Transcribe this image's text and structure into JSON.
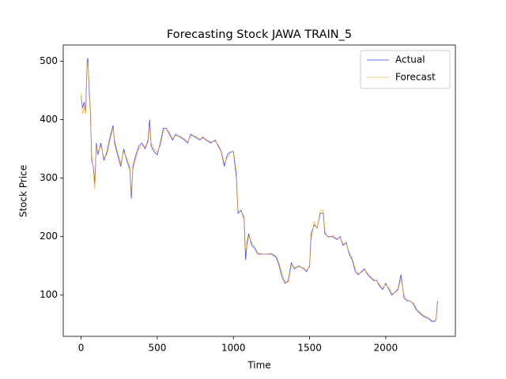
{
  "chart_data": {
    "type": "line",
    "title": "Forecasting Stock JAWA TRAIN_5",
    "x_label": "Time",
    "y_label": "Stock Price",
    "x": [
      0,
      10,
      20,
      30,
      40,
      45,
      55,
      60,
      70,
      80,
      90,
      100,
      110,
      130,
      150,
      170,
      190,
      210,
      220,
      240,
      260,
      280,
      300,
      320,
      330,
      340,
      360,
      380,
      400,
      420,
      440,
      450,
      460,
      480,
      500,
      520,
      540,
      560,
      580,
      600,
      620,
      650,
      680,
      700,
      720,
      750,
      780,
      800,
      820,
      850,
      880,
      900,
      920,
      940,
      960,
      980,
      1000,
      1020,
      1030,
      1050,
      1070,
      1080,
      1090,
      1100,
      1120,
      1140,
      1160,
      1200,
      1250,
      1280,
      1300,
      1320,
      1340,
      1360,
      1380,
      1400,
      1430,
      1460,
      1480,
      1500,
      1510,
      1530,
      1550,
      1570,
      1590,
      1600,
      1620,
      1650,
      1680,
      1700,
      1720,
      1740,
      1760,
      1780,
      1800,
      1820,
      1840,
      1860,
      1880,
      1900,
      1920,
      1940,
      1960,
      1980,
      2000,
      2020,
      2040,
      2060,
      2080,
      2100,
      2120,
      2140,
      2160,
      2180,
      2200,
      2220,
      2240,
      2260,
      2280,
      2300,
      2320,
      2330,
      2340
    ],
    "series": [
      {
        "name": "Actual",
        "color": "#0000ff",
        "values": [
          440,
          420,
          430,
          415,
          500,
          505,
          440,
          420,
          330,
          320,
          290,
          360,
          340,
          360,
          330,
          345,
          370,
          390,
          360,
          340,
          320,
          350,
          330,
          315,
          265,
          320,
          340,
          355,
          360,
          350,
          365,
          400,
          355,
          345,
          340,
          360,
          385,
          385,
          375,
          365,
          375,
          370,
          365,
          360,
          375,
          370,
          365,
          370,
          365,
          360,
          365,
          355,
          345,
          320,
          340,
          345,
          345,
          300,
          240,
          245,
          230,
          160,
          190,
          205,
          185,
          180,
          170,
          170,
          170,
          165,
          150,
          130,
          120,
          125,
          155,
          145,
          150,
          145,
          140,
          150,
          205,
          220,
          215,
          240,
          240,
          205,
          200,
          200,
          195,
          200,
          185,
          190,
          170,
          160,
          140,
          135,
          140,
          145,
          135,
          130,
          125,
          125,
          115,
          110,
          120,
          110,
          100,
          105,
          110,
          135,
          95,
          90,
          90,
          85,
          75,
          70,
          65,
          62,
          60,
          55,
          55,
          58,
          90
        ]
      },
      {
        "name": "Forecast",
        "color": "#ffa500",
        "values": [
          445,
          410,
          420,
          410,
          490,
          500,
          450,
          425,
          340,
          315,
          280,
          355,
          345,
          355,
          335,
          340,
          365,
          385,
          365,
          345,
          325,
          345,
          335,
          320,
          275,
          315,
          335,
          350,
          355,
          355,
          360,
          390,
          360,
          350,
          345,
          355,
          380,
          385,
          378,
          368,
          372,
          372,
          367,
          362,
          372,
          372,
          367,
          368,
          367,
          362,
          363,
          357,
          347,
          325,
          335,
          343,
          347,
          310,
          245,
          243,
          235,
          175,
          185,
          200,
          190,
          182,
          172,
          170,
          171,
          167,
          155,
          135,
          122,
          122,
          150,
          148,
          148,
          147,
          142,
          148,
          195,
          225,
          213,
          245,
          245,
          210,
          198,
          202,
          197,
          198,
          188,
          188,
          173,
          162,
          145,
          137,
          138,
          143,
          138,
          132,
          127,
          124,
          118,
          112,
          118,
          112,
          103,
          104,
          108,
          128,
          100,
          92,
          89,
          87,
          78,
          72,
          67,
          64,
          61,
          57,
          56,
          57,
          85
        ]
      }
    ],
    "xlim": [
      -117,
      2457
    ],
    "ylim": [
      29.4,
      527.6
    ],
    "xticks": [
      0,
      500,
      1000,
      1500,
      2000
    ],
    "yticks": [
      100,
      200,
      300,
      400,
      500
    ],
    "legend": "upper right"
  }
}
